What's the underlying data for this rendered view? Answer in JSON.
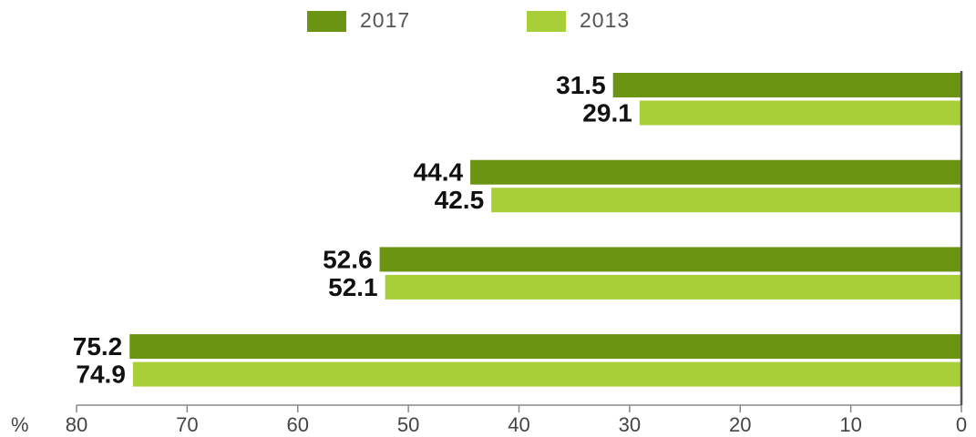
{
  "chart_data": {
    "type": "bar",
    "orientation": "horizontal",
    "categories": [
      null,
      null,
      null,
      null
    ],
    "series": [
      {
        "name": "2017",
        "color": "#6a9412",
        "values": [
          31.5,
          44.4,
          52.6,
          75.2
        ]
      },
      {
        "name": "2013",
        "color": "#a8cf38",
        "values": [
          29.1,
          42.5,
          52.1,
          74.9
        ]
      }
    ],
    "xlabel": "%",
    "xlim": [
      80,
      0
    ],
    "xticks": [
      80,
      70,
      60,
      50,
      40,
      30,
      20,
      10,
      0
    ]
  }
}
